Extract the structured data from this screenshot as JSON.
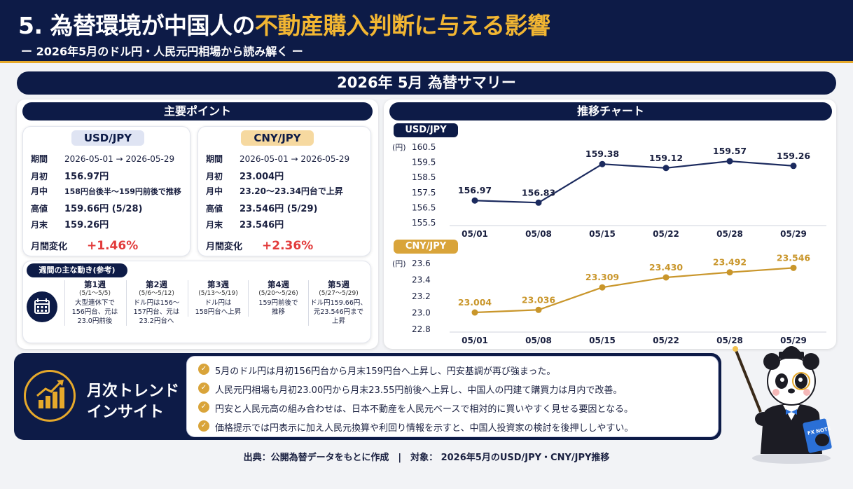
{
  "header": {
    "title_a": "5. 為替環境が中国人の",
    "title_b": "不動産購入判断に与える影響",
    "subtitle": "ー 2026年5月のドル円・人民元円相場から読み解く ー"
  },
  "summary_title": "2026年 5月 為替サマリー",
  "main_points": {
    "title": "主要ポイント",
    "usd": {
      "label": "USD/JPY",
      "rows": [
        {
          "k": "期間",
          "v": "2026-05-01 → 2026-05-29"
        },
        {
          "k": "月初",
          "v": "156.97円"
        },
        {
          "k": "月中",
          "v": "158円台後半～159円前後で推移"
        },
        {
          "k": "高値",
          "v": "159.66円 (5/28)"
        },
        {
          "k": "月末",
          "v": "159.26円"
        }
      ],
      "change_label": "月間変化",
      "change": "+1.46%"
    },
    "cny": {
      "label": "CNY/JPY",
      "rows": [
        {
          "k": "期間",
          "v": "2026-05-01 → 2026-05-29"
        },
        {
          "k": "月初",
          "v": "23.004円"
        },
        {
          "k": "月中",
          "v": "23.20～23.34円台で上昇"
        },
        {
          "k": "高値",
          "v": "23.546円 (5/29)"
        },
        {
          "k": "月末",
          "v": "23.546円"
        }
      ],
      "change_label": "月間変化",
      "change": "+2.36%"
    }
  },
  "weekly": {
    "title": "週間の主な動き(参考)",
    "weeks": [
      {
        "t": "第1週",
        "d": "(5/1～5/5)",
        "n1": "大型連休下で",
        "n2": "156円台、元は",
        "n3": "23.0円前後"
      },
      {
        "t": "第2週",
        "d": "(5/6～5/12)",
        "n1": "ドル円は156～",
        "n2": "157円台、元は",
        "n3": "23.2円台へ"
      },
      {
        "t": "第3週",
        "d": "(5/13～5/19)",
        "n1": "ドル円は",
        "n2": "158円台へ上昇",
        "n3": ""
      },
      {
        "t": "第4週",
        "d": "(5/20～5/26)",
        "n1": "159円前後で",
        "n2": "推移",
        "n3": ""
      },
      {
        "t": "第5週",
        "d": "(5/27～5/29)",
        "n1": "ドル円159.66円、",
        "n2": "元23.546円まで",
        "n3": "上昇"
      }
    ]
  },
  "chart_title": "推移チャート",
  "chart_data": [
    {
      "type": "line",
      "title": "USD/JPY",
      "ylabel": "(円)",
      "categories": [
        "05/01",
        "05/08",
        "05/15",
        "05/22",
        "05/28",
        "05/29"
      ],
      "series": [
        {
          "values": [
            156.97,
            156.83,
            159.38,
            159.12,
            159.57,
            159.26
          ]
        }
      ],
      "ylim": [
        155.5,
        160.5
      ],
      "yticks": [
        "160.5",
        "159.5",
        "158.5",
        "157.5",
        "156.5",
        "155.5"
      ],
      "color": "#1b2a5e"
    },
    {
      "type": "line",
      "title": "CNY/JPY",
      "ylabel": "(円)",
      "categories": [
        "05/01",
        "05/08",
        "05/15",
        "05/22",
        "05/28",
        "05/29"
      ],
      "series": [
        {
          "values": [
            23.004,
            23.036,
            23.309,
            23.43,
            23.492,
            23.546
          ]
        }
      ],
      "ylim": [
        22.8,
        23.6
      ],
      "yticks": [
        "23.6",
        "23.4",
        "23.2",
        "23.0",
        "22.8"
      ],
      "color": "#c9962b"
    }
  ],
  "trend": {
    "title1": "月次トレンド",
    "title2": "インサイト",
    "items": [
      "5月のドル円は月初156円台から月末159円台へ上昇し、円安基調が再び強まった。",
      "人民元円相場も月初23.00円から月末23.55円前後へ上昇し、中国人の円建て購買力は月内で改善。",
      "円安と人民元高の組み合わせは、日本不動産を人民元ベースで相対的に買いやすく見せる要因となる。",
      "価格提示では円表示に加え人民元換算や利回り情報を示すと、中国人投資家の検討を後押ししやすい。"
    ]
  },
  "panda_book": "FX NOTE",
  "source": "出典：公開為替データをもとに作成　|　対象： 2026年5月のUSD/JPY・CNY/JPY推移"
}
